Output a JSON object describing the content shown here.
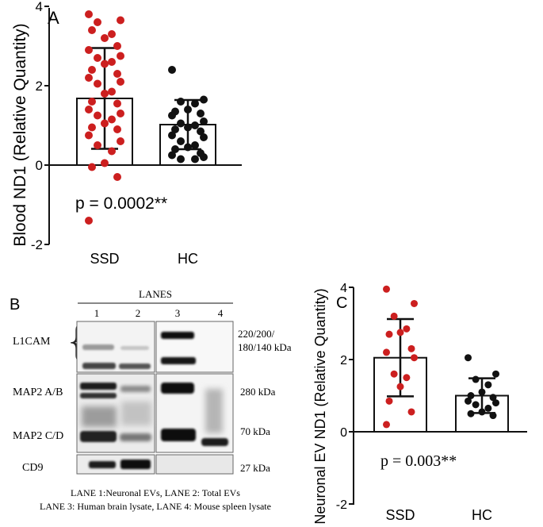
{
  "panelA": {
    "label": "A",
    "ylabel": "Blood ND1 (Relative Quantity)",
    "yticks": [
      "4",
      "2",
      "0",
      "-2"
    ],
    "categories": [
      "SSD",
      "HC"
    ],
    "pvalue": "p = 0.0002**"
  },
  "panelB": {
    "label": "B",
    "lanes_title": "LANES",
    "lane_numbers": [
      "1",
      "2",
      "3",
      "4"
    ],
    "row_labels": [
      "L1CAM",
      "MAP2 A/B",
      "MAP2 C/D",
      "CD9"
    ],
    "kda_labels": [
      "220/200/",
      "180/140 kDa",
      "280 kDa",
      "70 kDa",
      "27 kDa"
    ],
    "legend_line1": "LANE 1:Neuronal EVs, LANE 2: Total EVs",
    "legend_line2": "LANE 3: Human brain lysate, LANE 4: Mouse spleen lysate"
  },
  "panelC": {
    "label": "C",
    "ylabel": "Neuronal EV ND1 (Relative Quantity)",
    "yticks": [
      "4",
      "2",
      "0",
      "-2"
    ],
    "categories": [
      "SSD",
      "HC"
    ],
    "pvalue": "p = 0.003**"
  },
  "colors": {
    "ssd": "#cc1f1f",
    "hc": "#111111"
  },
  "chart_data": [
    {
      "type": "bar",
      "title": "A",
      "ylabel": "Blood ND1 (Relative Quantity)",
      "ylim": [
        -2,
        4
      ],
      "categories": [
        "SSD",
        "HC"
      ],
      "series": [
        {
          "name": "mean",
          "values": [
            1.68,
            1.02
          ]
        },
        {
          "name": "sd",
          "values": [
            1.27,
            0.62
          ]
        }
      ],
      "points": {
        "SSD": [
          3.8,
          3.65,
          3.6,
          3.3,
          3.2,
          3.4,
          3.0,
          2.9,
          2.75,
          2.7,
          2.6,
          2.55,
          2.4,
          2.3,
          2.2,
          2.1,
          2.05,
          1.85,
          1.8,
          1.6,
          1.55,
          1.4,
          1.3,
          1.25,
          1.15,
          1.05,
          0.95,
          0.9,
          0.75,
          0.6,
          0.5,
          0.35,
          0.05,
          -0.05,
          -0.3,
          -1.4
        ],
        "HC": [
          2.4,
          1.65,
          1.6,
          1.55,
          1.4,
          1.35,
          1.3,
          1.25,
          1.1,
          1.05,
          1.0,
          0.95,
          0.9,
          0.85,
          0.75,
          0.7,
          0.6,
          0.5,
          0.45,
          0.4,
          0.3,
          0.25,
          0.2,
          0.15,
          0.15
        ]
      },
      "annotation": "p = 0.0002**"
    },
    {
      "type": "bar",
      "title": "C",
      "ylabel": "Neuronal EV ND1 (Relative Quantity)",
      "ylim": [
        -2,
        4
      ],
      "categories": [
        "SSD",
        "HC"
      ],
      "series": [
        {
          "name": "mean",
          "values": [
            2.05,
            1.0
          ]
        },
        {
          "name": "sd",
          "values": [
            1.07,
            0.48
          ]
        }
      ],
      "points": {
        "SSD": [
          3.95,
          3.55,
          3.2,
          2.85,
          2.75,
          2.7,
          2.3,
          2.2,
          2.05,
          1.6,
          1.5,
          1.25,
          0.85,
          0.55,
          0.2
        ],
        "HC": [
          2.05,
          1.6,
          1.45,
          1.3,
          1.1,
          1.0,
          0.95,
          0.85,
          0.8,
          0.75,
          0.65,
          0.55,
          0.5,
          0.45
        ]
      },
      "annotation": "p = 0.003**"
    }
  ]
}
